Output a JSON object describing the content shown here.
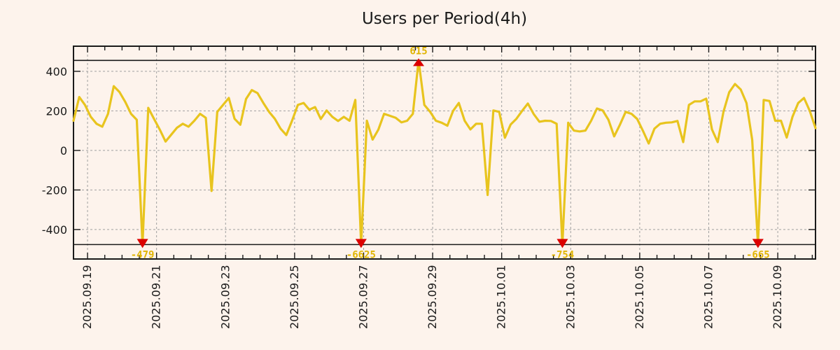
{
  "chart_data": {
    "type": "line",
    "title": "Users per Period(4h)",
    "series_name": "users",
    "sample_interval_hours": 4,
    "x_tick_labels": [
      "2025.09.19",
      "2025.09.21",
      "2025.09.23",
      "2025.09.25",
      "2025.09.27",
      "2025.09.29",
      "2025.10.01",
      "2025.10.03",
      "2025.10.05",
      "2025.10.07",
      "2025.10.09"
    ],
    "x_first_tick_sample_index": 2.44,
    "x_samples_per_tick": 12,
    "x_minor_tick_every_samples": 3,
    "y_ticks": [
      400,
      200,
      0,
      -200,
      -400
    ],
    "ylim": [
      -549,
      527
    ],
    "clip_lines": {
      "top": 455,
      "bottom": -476
    },
    "grid": true,
    "legend_position": "none",
    "values": [
      150,
      270,
      230,
      170,
      135,
      120,
      185,
      325,
      295,
      245,
      185,
      155,
      -479,
      215,
      160,
      105,
      45,
      80,
      115,
      135,
      120,
      150,
      185,
      165,
      -205,
      195,
      230,
      265,
      160,
      130,
      260,
      305,
      290,
      240,
      195,
      160,
      110,
      78,
      150,
      230,
      240,
      206,
      219,
      159,
      202,
      170,
      149,
      170,
      150,
      255,
      -6625,
      150,
      55,
      105,
      185,
      175,
      165,
      142,
      150,
      185,
      615,
      230,
      195,
      150,
      140,
      125,
      200,
      240,
      150,
      106,
      135,
      135,
      -225,
      202,
      195,
      64,
      131,
      160,
      200,
      237,
      184,
      145,
      150,
      149,
      135,
      -754,
      140,
      100,
      96,
      100,
      150,
      212,
      202,
      155,
      71,
      130,
      195,
      185,
      159,
      99,
      35,
      110,
      135,
      140,
      142,
      149,
      42,
      230,
      248,
      248,
      262,
      106,
      42,
      195,
      294,
      336,
      308,
      240,
      53,
      -665,
      255,
      250,
      150,
      150,
      65,
      170,
      240,
      265,
      200,
      113
    ],
    "annotations": [
      {
        "sample_index": 12,
        "value": -479,
        "label": "-479",
        "direction": "min"
      },
      {
        "sample_index": 50,
        "value": -6625,
        "label": "-6625",
        "direction": "min"
      },
      {
        "sample_index": 60,
        "value": 615,
        "label": "615",
        "direction": "max"
      },
      {
        "sample_index": 85,
        "value": -754,
        "label": "-754",
        "direction": "min"
      },
      {
        "sample_index": 119,
        "value": -665,
        "label": "-665",
        "direction": "min"
      }
    ],
    "colors": {
      "line": "#e8c41e",
      "marker": "#dc0000",
      "annotation_label": "#e0b400",
      "grid": "#a0a0a0",
      "axis": "#1a1a1a",
      "tick_label": "#1a1a1a",
      "title": "#1a1a1a",
      "background": "#fdf3ec"
    }
  }
}
